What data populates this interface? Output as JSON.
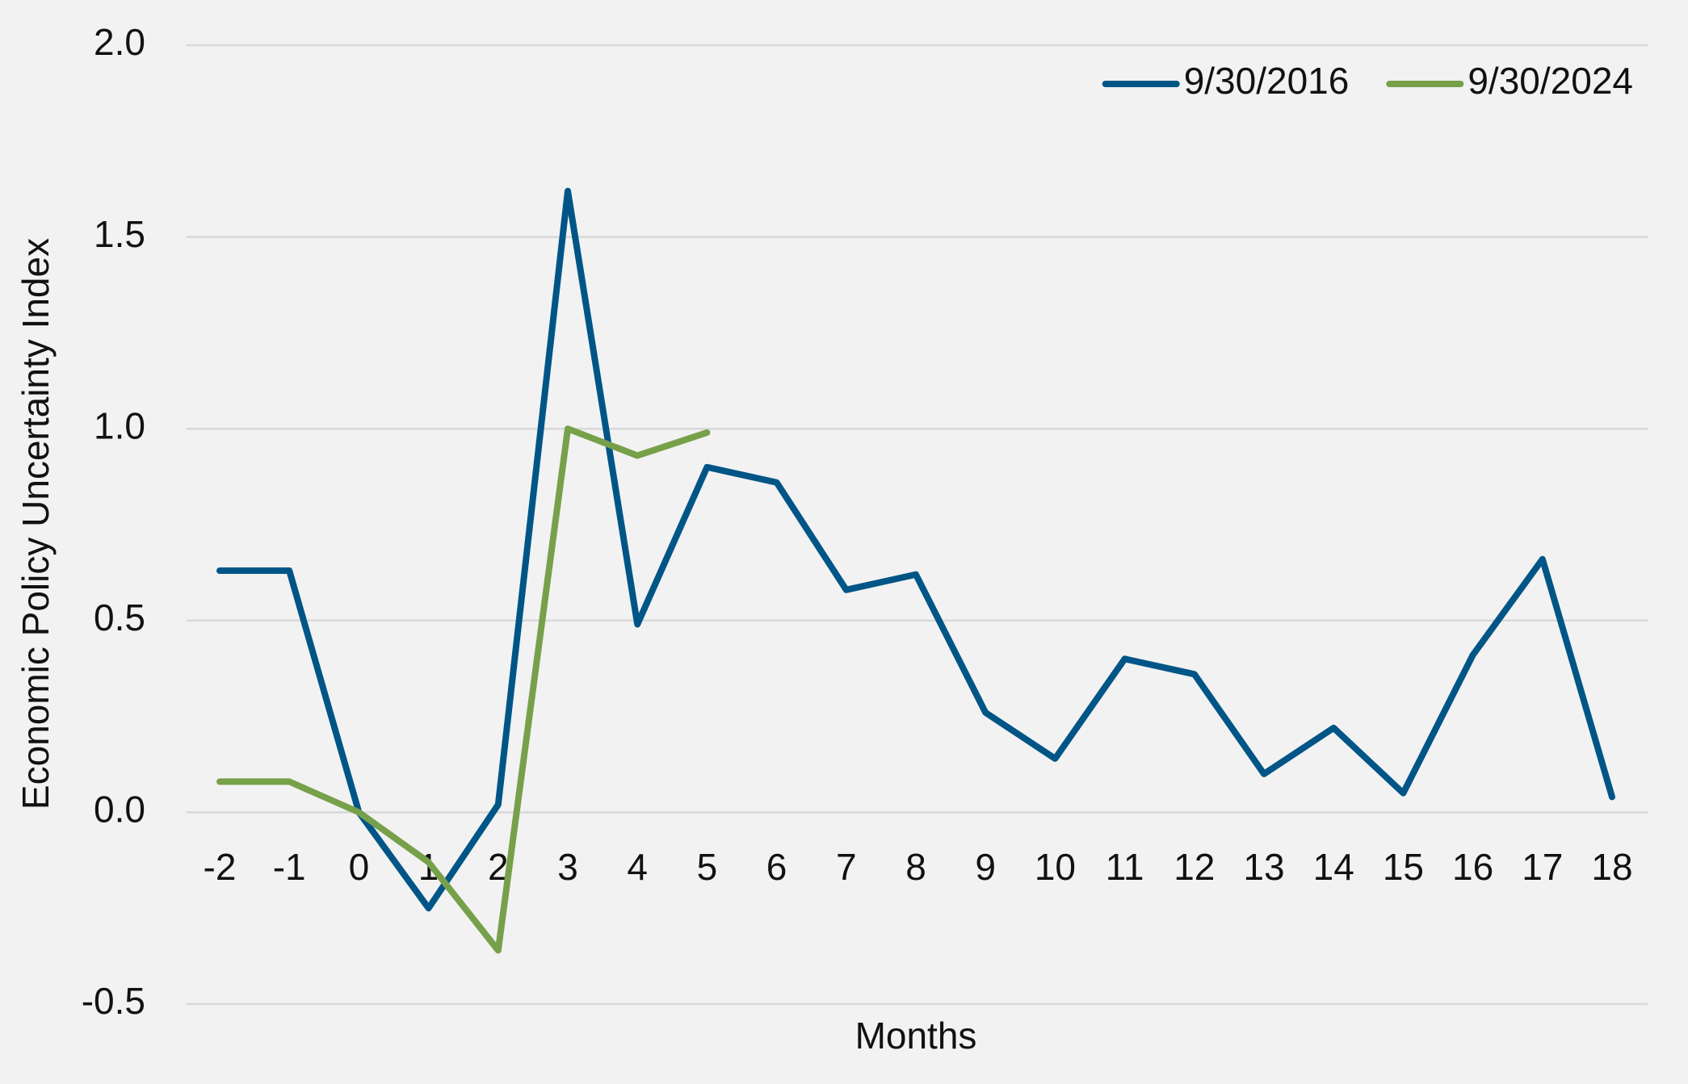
{
  "chart_data": {
    "type": "line",
    "x_label": "Months",
    "y_label": "Economic Policy Uncertainty Index",
    "categories": [
      "-2",
      "-1",
      "0",
      "1",
      "2",
      "3",
      "4",
      "5",
      "6",
      "7",
      "8",
      "9",
      "10",
      "11",
      "12",
      "13",
      "14",
      "15",
      "16",
      "17",
      "18"
    ],
    "series": [
      {
        "name": "9/30/2016",
        "color": "#005587",
        "values": [
          0.63,
          0.63,
          0.0,
          -0.25,
          0.02,
          1.62,
          0.49,
          0.9,
          0.86,
          0.58,
          0.62,
          0.26,
          0.14,
          0.4,
          0.36,
          0.1,
          0.22,
          0.05,
          0.41,
          0.66,
          0.04
        ]
      },
      {
        "name": "9/30/2024",
        "color": "#77a04a",
        "values": [
          0.08,
          0.08,
          0.0,
          -0.13,
          -0.36,
          1.0,
          0.93,
          0.99,
          null,
          null,
          null,
          null,
          null,
          null,
          null,
          null,
          null,
          null,
          null,
          null,
          null
        ]
      }
    ],
    "ylim": [
      -0.5,
      2.0
    ],
    "yticks": [
      -0.5,
      {
        "value": 0,
        "label": "0.0"
      },
      0.5,
      {
        "value": 1,
        "label": "1.0"
      },
      1.5,
      {
        "value": 2,
        "label": "2.0"
      }
    ],
    "grid": true,
    "legend": "top-right"
  }
}
